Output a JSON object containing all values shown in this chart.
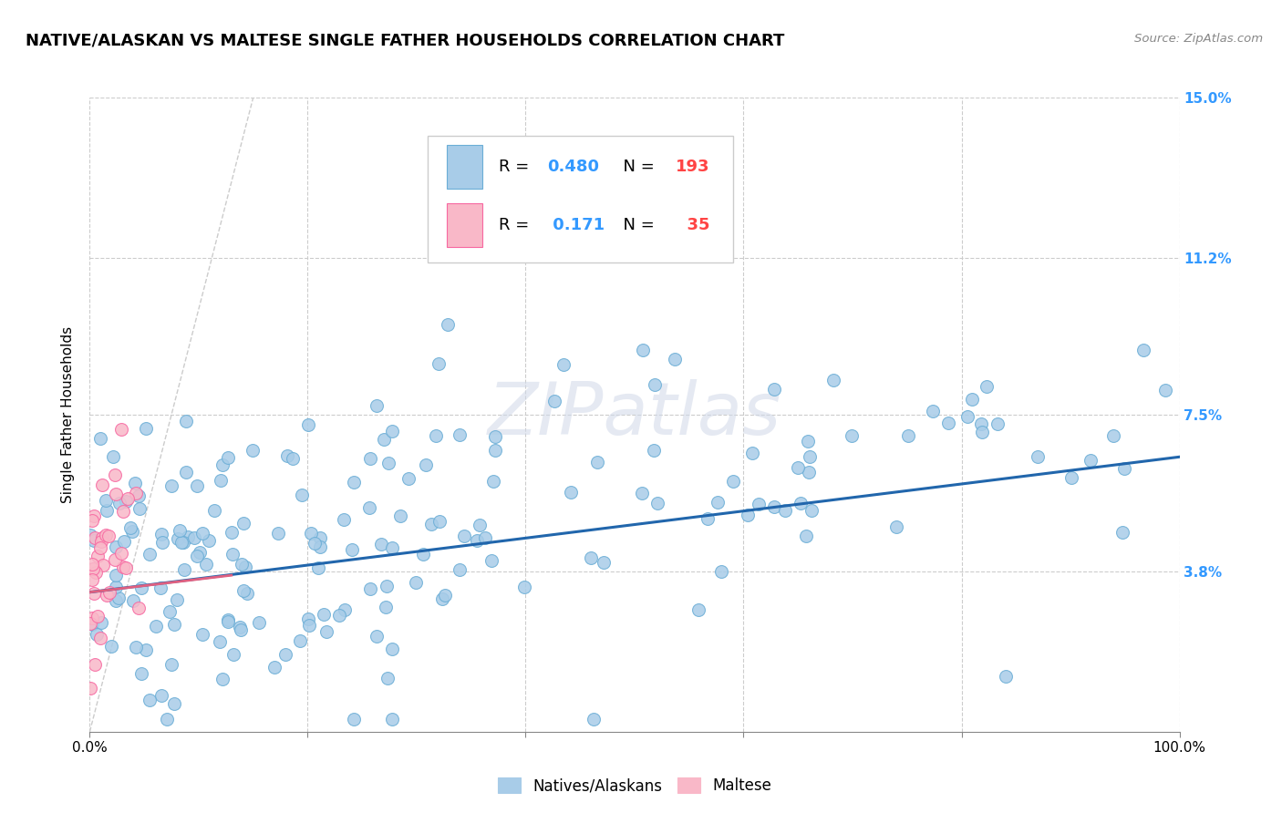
{
  "title": "NATIVE/ALASKAN VS MALTESE SINGLE FATHER HOUSEHOLDS CORRELATION CHART",
  "source": "Source: ZipAtlas.com",
  "ylabel": "Single Father Households",
  "xlim": [
    0,
    1.0
  ],
  "ylim": [
    0,
    0.15
  ],
  "yticks": [
    0.038,
    0.075,
    0.112,
    0.15
  ],
  "yticklabels": [
    "3.8%",
    "7.5%",
    "11.2%",
    "15.0%"
  ],
  "blue_color": "#a8cce8",
  "pink_color": "#f9b8c8",
  "blue_edge_color": "#6baed6",
  "pink_edge_color": "#f768a1",
  "blue_line_color": "#2166ac",
  "pink_line_color": "#e06080",
  "diag_line_color": "#cccccc",
  "grid_color": "#cccccc",
  "legend_R_blue": "0.480",
  "legend_N_blue": "193",
  "legend_R_pink": "0.171",
  "legend_N_pink": "35",
  "legend_label_blue": "Natives/Alaskans",
  "legend_label_pink": "Maltese",
  "watermark": "ZIPatlas",
  "num_color": "#3399ff",
  "N_color": "#ff4444",
  "blue_line_x": [
    0.0,
    1.0
  ],
  "blue_line_y": [
    0.033,
    0.065
  ],
  "pink_line_x": [
    0.0,
    0.13
  ],
  "pink_line_y": [
    0.033,
    0.037
  ]
}
